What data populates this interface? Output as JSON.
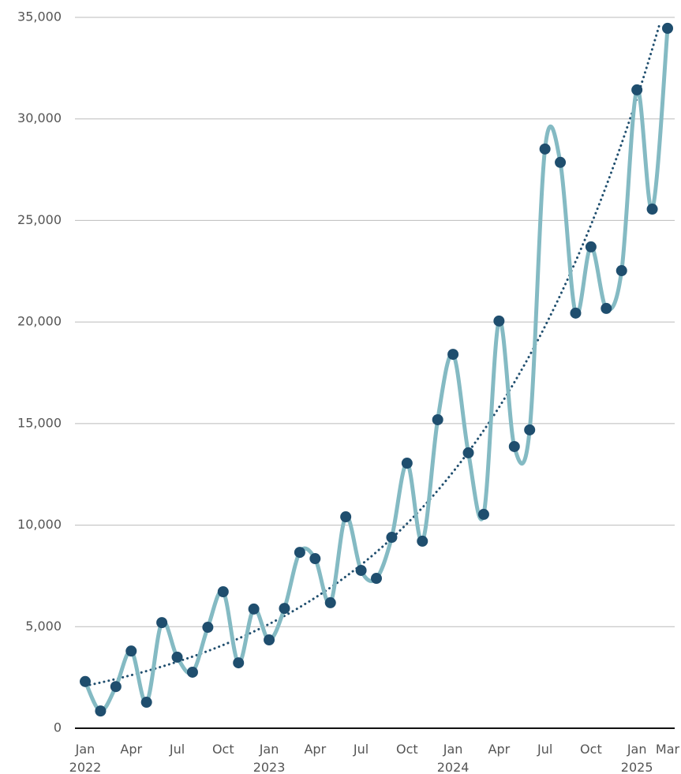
{
  "chart_data": {
    "type": "line",
    "categories": [
      "Jan 2022",
      null,
      null,
      "Apr",
      null,
      null,
      "Jul",
      null,
      null,
      "Oct",
      null,
      null,
      "Jan 2023",
      null,
      null,
      "Apr",
      null,
      null,
      "Jul",
      null,
      null,
      "Oct",
      null,
      null,
      "Jan 2024",
      null,
      null,
      "Apr",
      null,
      null,
      "Jul",
      null,
      null,
      "Oct",
      null,
      null,
      "Jan 2025",
      null,
      "Mar"
    ],
    "series": [
      {
        "color": "#84bac3",
        "marker_color": "#1f4e6e",
        "values": [
          2300,
          850,
          2050,
          3800,
          1280,
          5200,
          3500,
          2760,
          4970,
          6720,
          3220,
          5870,
          4350,
          5900,
          8660,
          8350,
          6180,
          10410,
          7770,
          7380,
          9400,
          13050,
          9210,
          15190,
          18410,
          13560,
          10530,
          20050,
          13870,
          14690,
          28520,
          27860,
          20440,
          23700,
          20670,
          22530,
          31430,
          25560,
          34460
        ]
      }
    ],
    "trendline": {
      "kind": "exponential",
      "color": "#1f4e6e"
    },
    "ylim": [
      0,
      35000
    ],
    "yticks": [
      0,
      {
        "value": 5000,
        "label": "5,000"
      },
      {
        "value": 10000,
        "label": "10,000"
      },
      {
        "value": 15000,
        "label": "15,000"
      },
      {
        "value": 20000,
        "label": "20,000"
      },
      {
        "value": 25000,
        "label": "25,000"
      },
      {
        "value": 30000,
        "label": "30,000"
      },
      {
        "value": 35000,
        "label": "35,000"
      }
    ],
    "grid": true
  }
}
